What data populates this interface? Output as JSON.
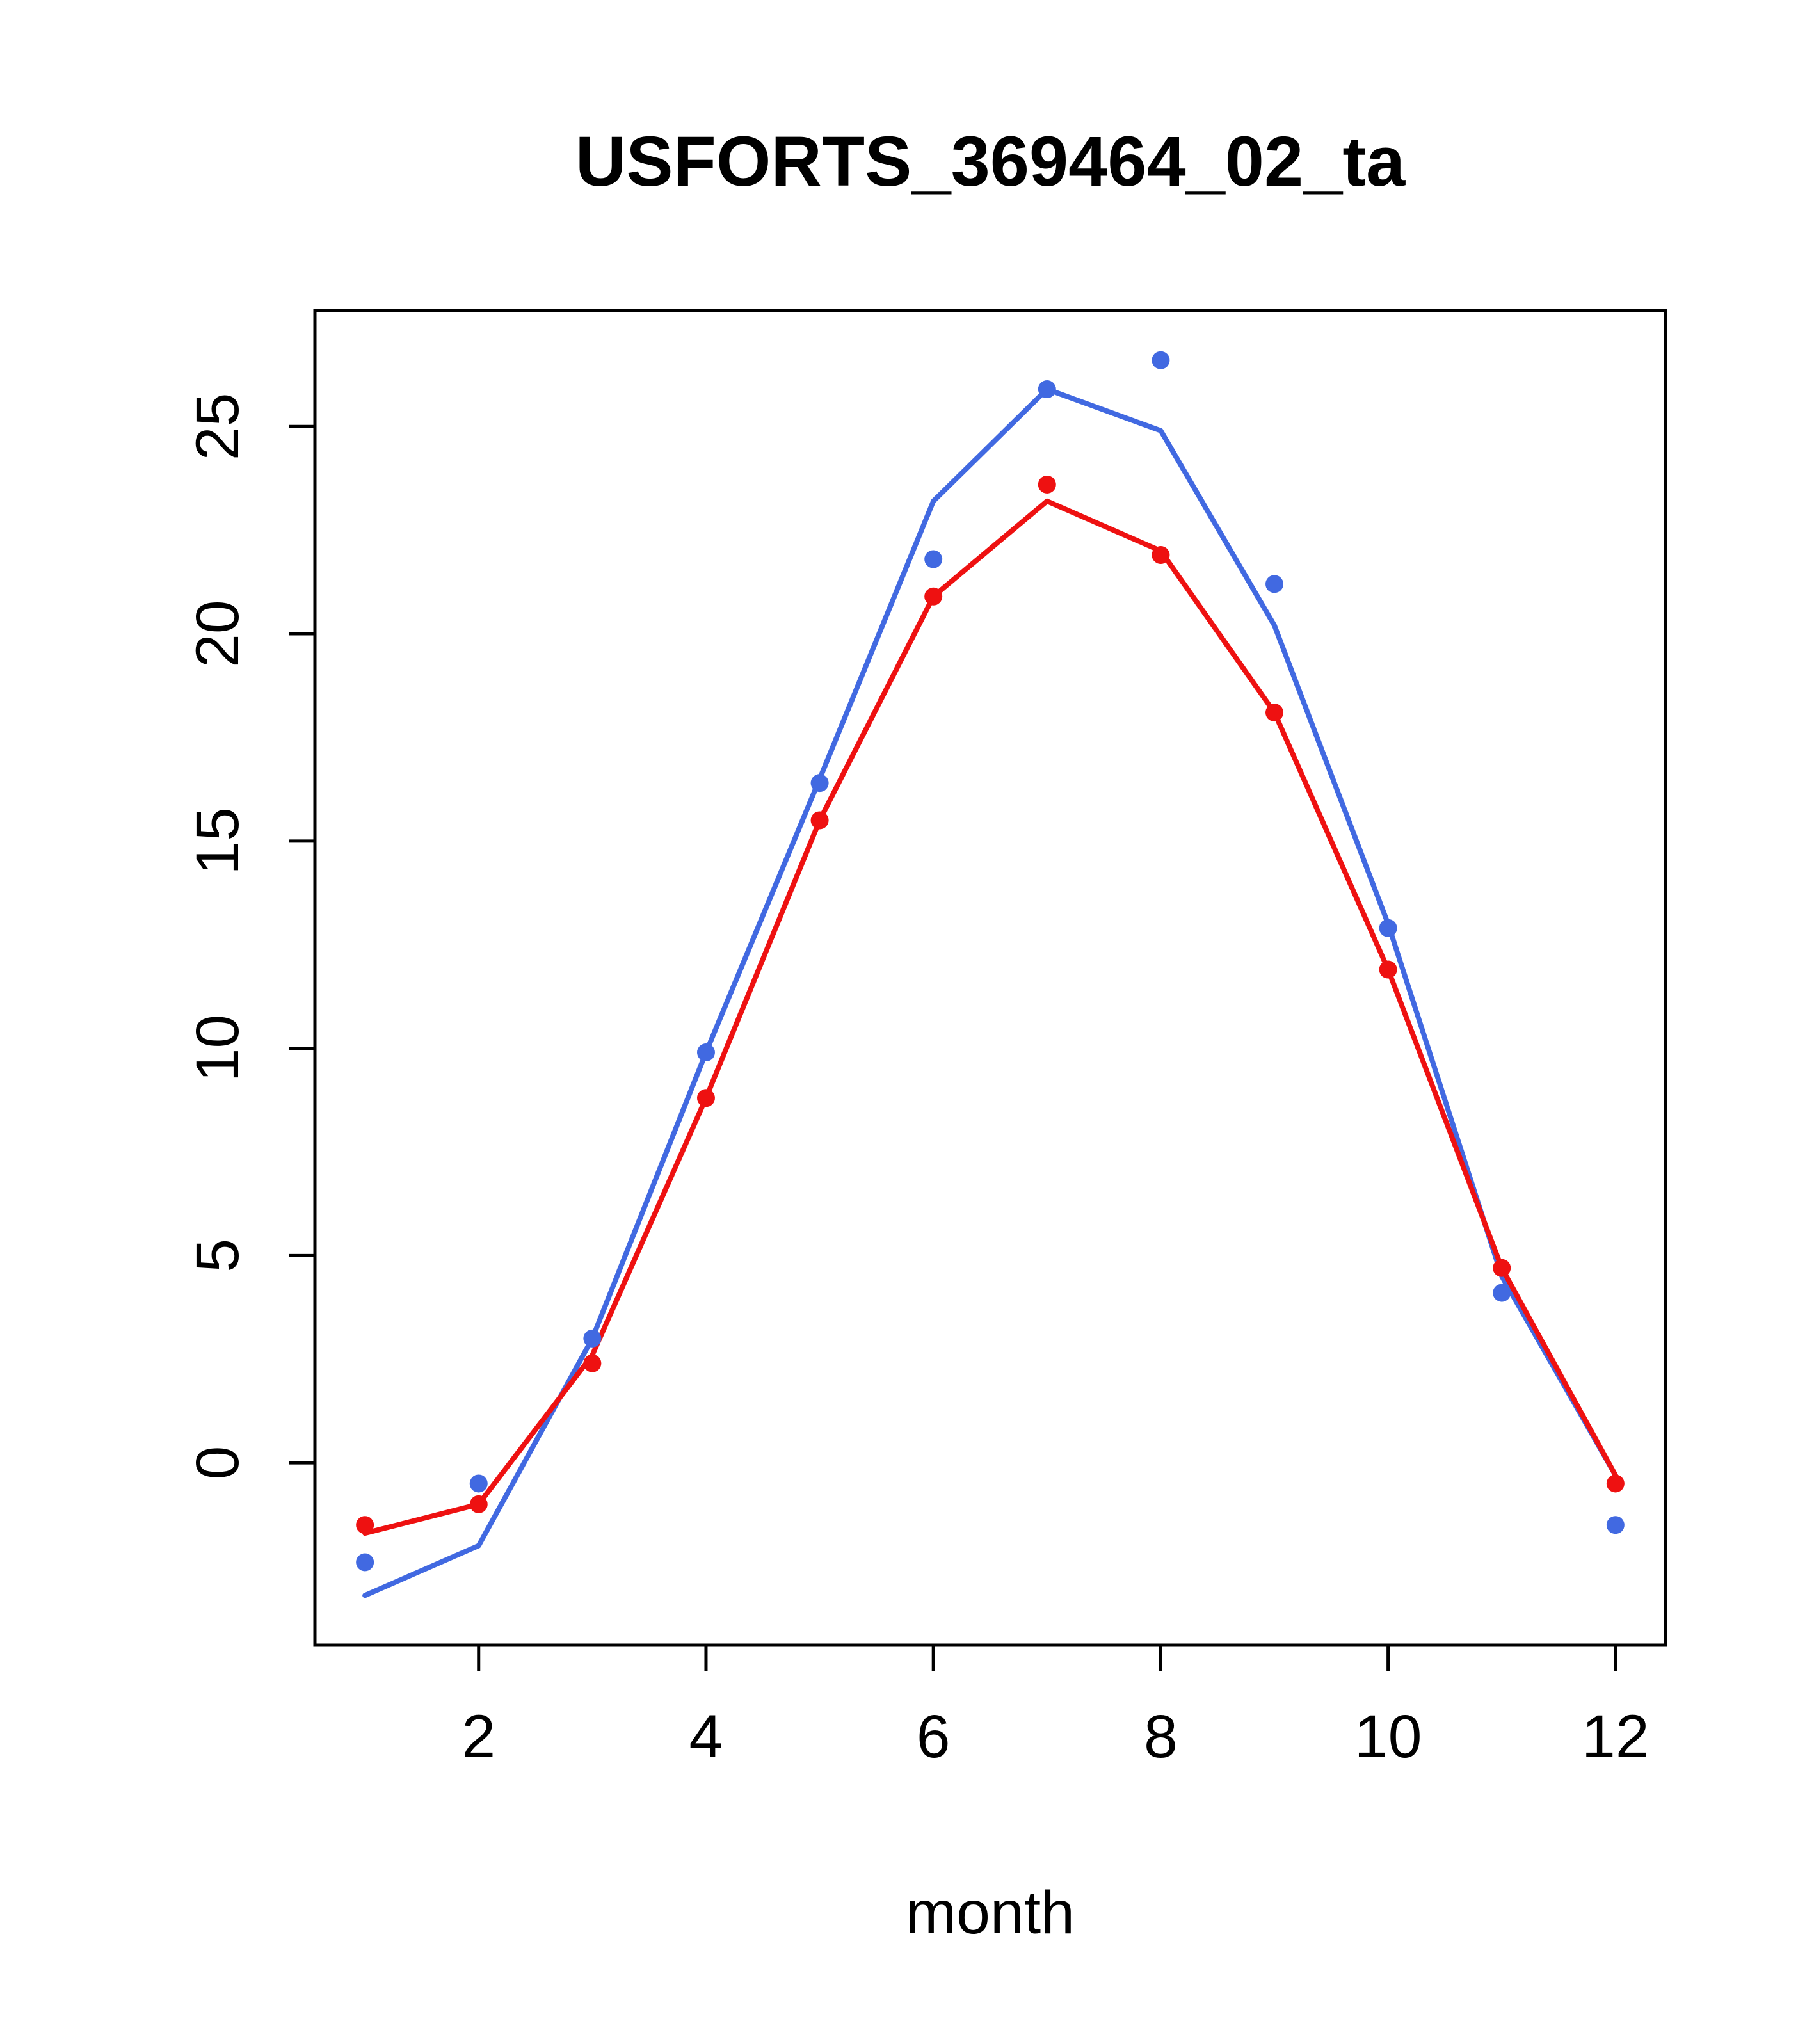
{
  "chart_data": {
    "type": "line",
    "title": "USFORTS_369464_02_ta",
    "xlabel": "month",
    "ylabel": "",
    "x": [
      1,
      2,
      3,
      4,
      5,
      6,
      7,
      8,
      9,
      10,
      11,
      12
    ],
    "series": [
      {
        "name": "blue-line",
        "style": "line",
        "color": "#4169e1",
        "values": [
          -3.2,
          -2.0,
          3.0,
          9.9,
          16.5,
          23.2,
          25.9,
          24.9,
          20.2,
          13.0,
          4.5,
          -0.3
        ]
      },
      {
        "name": "red-line",
        "style": "line",
        "color": "#ee1111",
        "values": [
          -1.7,
          -1.0,
          2.6,
          8.8,
          15.5,
          20.9,
          23.2,
          22.0,
          18.1,
          11.9,
          4.7,
          -0.3
        ]
      },
      {
        "name": "blue-points",
        "style": "points",
        "color": "#4169e1",
        "values": [
          -2.4,
          -0.5,
          3.0,
          9.9,
          16.4,
          21.8,
          25.9,
          26.6,
          21.2,
          12.9,
          4.1,
          -1.5
        ]
      },
      {
        "name": "red-points",
        "style": "points",
        "color": "#ee1111",
        "values": [
          -1.5,
          -1.0,
          2.4,
          8.8,
          15.5,
          20.9,
          23.6,
          21.9,
          18.1,
          11.9,
          4.7,
          -0.5
        ]
      }
    ],
    "xticks": [
      2,
      4,
      6,
      8,
      10,
      12
    ],
    "yticks": [
      0,
      5,
      10,
      15,
      20,
      25
    ],
    "xlim": [
      0.56,
      12.44
    ],
    "ylim": [
      -4.4,
      27.8
    ],
    "grid": false,
    "legend": "none"
  }
}
